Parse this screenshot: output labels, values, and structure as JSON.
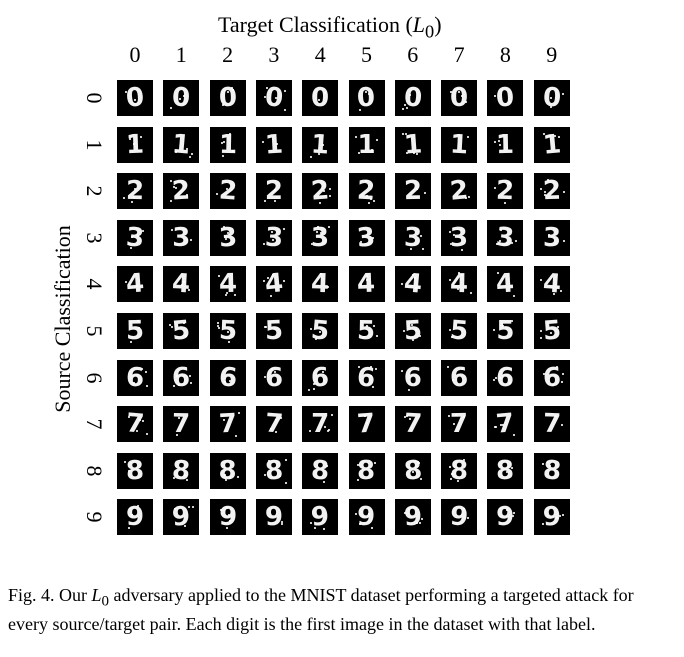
{
  "figure": {
    "title_prefix": "Target Classification (",
    "title_var": "L",
    "title_sub": "0",
    "title_suffix": ")",
    "y_label": "Source Classification",
    "columns": [
      "0",
      "1",
      "2",
      "3",
      "4",
      "5",
      "6",
      "7",
      "8",
      "9"
    ],
    "rows": [
      "0",
      "1",
      "2",
      "3",
      "4",
      "5",
      "6",
      "7",
      "8",
      "9"
    ],
    "cell_glyphs": [
      "0",
      "1",
      "2",
      "3",
      "4",
      "5",
      "6",
      "7",
      "8",
      "9"
    ]
  },
  "caption": {
    "prefix": "Fig. 4.  Our ",
    "var": "L",
    "sub": "0",
    "suffix": " adversary applied to the MNIST dataset performing a targeted attack for every source/target pair. Each digit is the first image in the dataset with that label."
  },
  "colors": {
    "cell_background": "#000000",
    "digit": "#f2f2f2"
  }
}
